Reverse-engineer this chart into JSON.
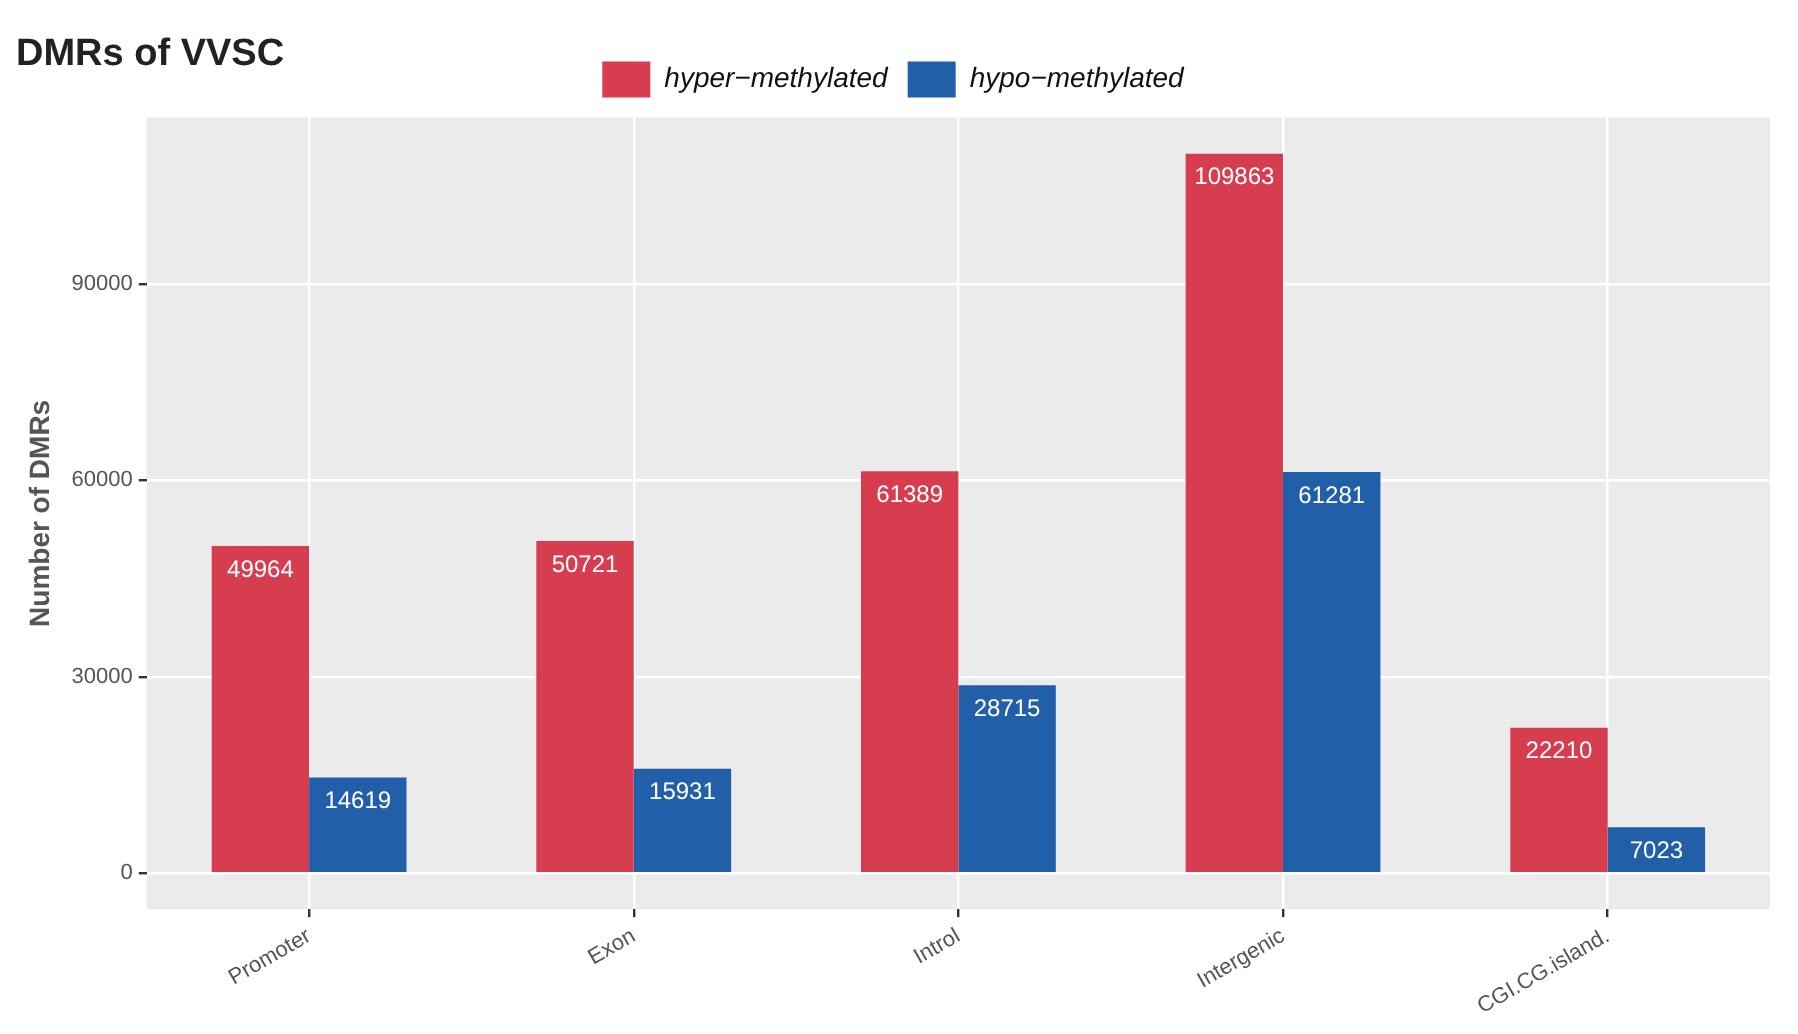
{
  "chart_data": {
    "type": "bar",
    "title": "DMRs of VVSC",
    "ylabel": "Number of DMRs",
    "categories": [
      "Promoter",
      "Exon",
      "Introl",
      "Intergenic",
      "CGI.CG.island."
    ],
    "series": [
      {
        "name": "hyper−methylated",
        "color": "#d63e50",
        "values": [
          49964,
          50721,
          61389,
          109863,
          22210
        ]
      },
      {
        "name": "hypo−methylated",
        "color": "#215fa8",
        "values": [
          14619,
          15931,
          28715,
          61281,
          7023
        ]
      }
    ],
    "ylim": [
      -5500,
      115400
    ],
    "yticks": [
      0,
      30000,
      60000,
      90000
    ],
    "grid": true,
    "legend": "top",
    "data_labels": true
  }
}
